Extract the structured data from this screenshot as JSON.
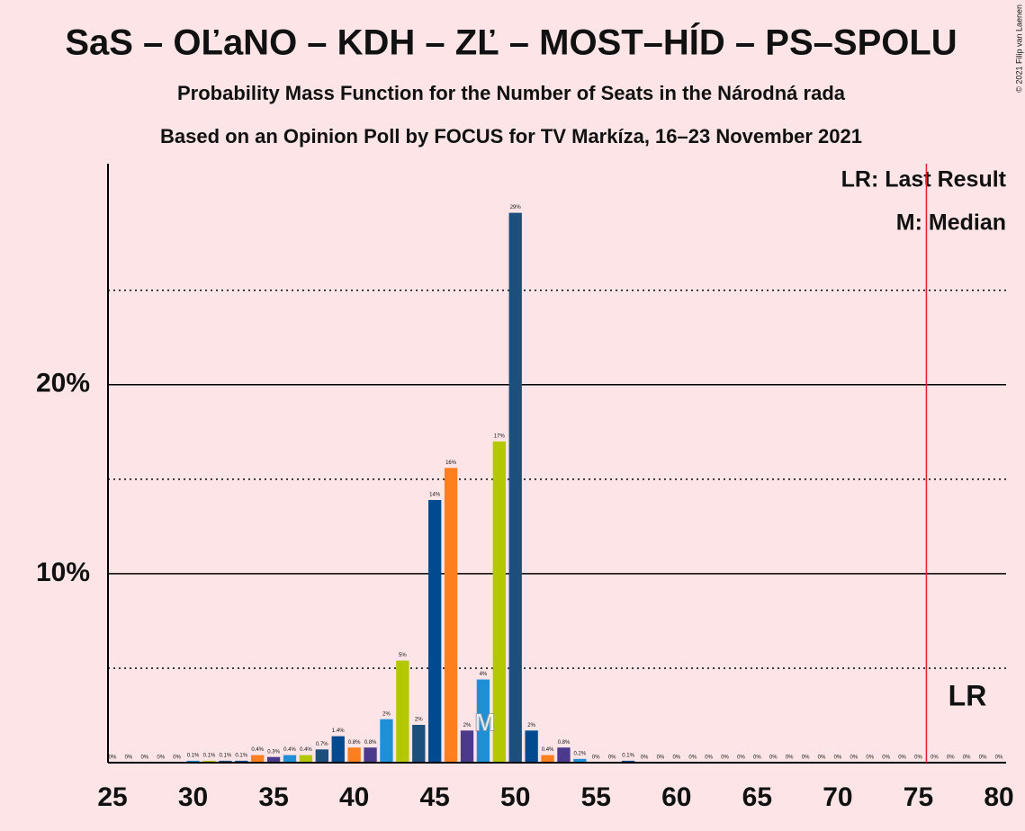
{
  "chart_data": {
    "type": "bar",
    "title": "SaS – OĽaNO – KDH – ZĽ – MOST–HÍD – PS–SPOLU",
    "subtitle": "Probability Mass Function for the Number of Seats in the Národná rada",
    "subtitle2": "Based on an Opinion Poll by FOCUS for TV Markíza, 16–23 November 2021",
    "x": [
      25,
      26,
      27,
      28,
      29,
      30,
      31,
      32,
      33,
      34,
      35,
      36,
      37,
      38,
      39,
      40,
      41,
      42,
      43,
      44,
      45,
      46,
      47,
      48,
      49,
      50,
      51,
      52,
      53,
      54,
      55,
      56,
      57,
      58,
      59,
      60,
      61,
      62,
      63,
      64,
      65,
      66,
      67,
      68,
      69,
      70,
      71,
      72,
      73,
      74,
      75,
      76,
      77,
      78,
      79,
      80
    ],
    "values": [
      0,
      0,
      0,
      0,
      0,
      0.1,
      0.1,
      0.1,
      0.1,
      0.4,
      0.3,
      0.4,
      0.4,
      0.7,
      1.4,
      0.8,
      0.8,
      2.3,
      5.4,
      2.0,
      13.9,
      15.6,
      1.7,
      4.4,
      17.0,
      29.1,
      1.7,
      0.4,
      0.8,
      0.2,
      0,
      0,
      0.1,
      0,
      0,
      0,
      0,
      0,
      0,
      0,
      0,
      0,
      0,
      0,
      0,
      0,
      0,
      0,
      0,
      0,
      0,
      0,
      0,
      0,
      0,
      0
    ],
    "value_labels": [
      "0%",
      "0%",
      "0%",
      "0%",
      "0%",
      "0.1%",
      "0.1%",
      "0.1%",
      "0.1%",
      "0.4%",
      "0.3%",
      "0.4%",
      "0.4%",
      "0.7%",
      "1.4%",
      "0.8%",
      "0.8%",
      "2%",
      "5%",
      "2%",
      "14%",
      "16%",
      "2%",
      "4%",
      "17%",
      "29%",
      "2%",
      "0.4%",
      "0.8%",
      "0.2%",
      "0%",
      "0%",
      "0.1%",
      "0%",
      "0%",
      "0%",
      "0%",
      "0%",
      "0%",
      "0%",
      "0%",
      "0%",
      "0%",
      "0%",
      "0%",
      "0%",
      "0%",
      "0%",
      "0%",
      "0%",
      "0%",
      "0%",
      "0%",
      "0%",
      "0%",
      "0%"
    ],
    "colors": [
      "#b3c800",
      "#1c4f7c",
      "#024a8f",
      "#ff7f1e",
      "#4b3a8c",
      "#1f8fd6",
      "#b3c800",
      "#1c4f7c",
      "#024a8f",
      "#ff7f1e",
      "#4b3a8c",
      "#1f8fd6",
      "#b3c800",
      "#1c4f7c",
      "#024a8f",
      "#ff7f1e",
      "#4b3a8c",
      "#1f8fd6",
      "#b3c800",
      "#1c4f7c",
      "#024a8f",
      "#ff7f1e",
      "#4b3a8c",
      "#1f8fd6",
      "#b3c800",
      "#1c4f7c",
      "#024a8f",
      "#ff7f1e",
      "#4b3a8c",
      "#1f8fd6",
      "#b3c800",
      "#1c4f7c",
      "#024a8f",
      "#ff7f1e",
      "#4b3a8c",
      "#1f8fd6",
      "#b3c800",
      "#1c4f7c",
      "#024a8f",
      "#ff7f1e",
      "#4b3a8c",
      "#1f8fd6",
      "#b3c800",
      "#1c4f7c",
      "#024a8f",
      "#ff7f1e",
      "#4b3a8c",
      "#1f8fd6",
      "#b3c800",
      "#1c4f7c",
      "#024a8f",
      "#ff7f1e",
      "#4b3a8c",
      "#1f8fd6",
      "#b3c800",
      "#1c4f7c"
    ],
    "xlim": [
      25,
      80
    ],
    "xticks": [
      25,
      30,
      35,
      40,
      45,
      50,
      55,
      60,
      65,
      70,
      75,
      80
    ],
    "ylim": [
      0,
      31.7
    ],
    "yticks": [
      {
        "value": 10,
        "label": "10%"
      },
      {
        "value": 20,
        "label": "20%"
      }
    ],
    "minor_gridlines": [
      5,
      15,
      25
    ],
    "median": 48,
    "median_label": "M",
    "last_result": 75.5,
    "last_result_label": "LR",
    "last_result_color": "#e0202a",
    "legend": [
      "LR: Last Result",
      "M: Median"
    ],
    "copyright": "© 2021 Filip van Laenen"
  }
}
